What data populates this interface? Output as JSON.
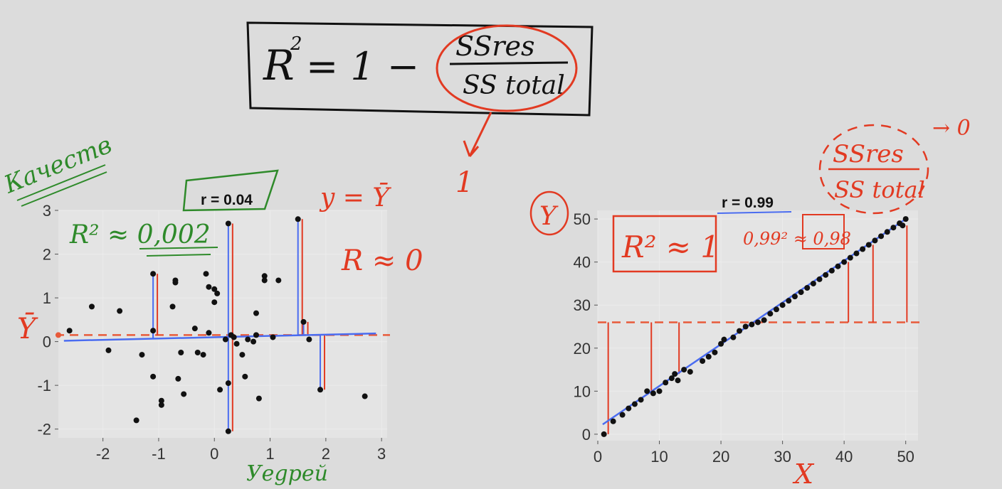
{
  "formula": {
    "lhs": "R",
    "sup": "2",
    "eq": "= 1 −",
    "numerator": "SSres",
    "denominator": "SS total",
    "arrow_result": "1"
  },
  "left_annotations": {
    "side_word": "Качеств",
    "r2": "R² ≈ 0,002",
    "y_eq": "y = Ȳ",
    "r_approx": "R ≈ 0",
    "ybar": "Ȳ",
    "bottom_word": "Уegрей"
  },
  "right_annotations": {
    "y_circle": "Y",
    "r2_box": "R² ≈ 1",
    "calc": "0,99² ≈ 0,98",
    "ratio_num": "SSres",
    "ratio_den": "SS total",
    "to_zero": "→ 0",
    "x_label": "X"
  },
  "colors": {
    "background": "#dcdcdc",
    "fit_line": "#4a6cf0",
    "residual": "#e23a22",
    "mean_line": "#e85a3a",
    "points": "#111111",
    "green_ink": "#2e8a2a"
  },
  "chart_data": [
    {
      "type": "scatter",
      "title": "r = 0.04",
      "xlabel": "",
      "ylabel": "",
      "xlim": [
        -2.8,
        3.1
      ],
      "ylim": [
        -2.2,
        3.0
      ],
      "xticks": [
        -2,
        -1,
        0,
        1,
        2,
        3
      ],
      "yticks": [
        -2,
        -1,
        0,
        1,
        2,
        3
      ],
      "mean_y": 0.15,
      "fit": {
        "intercept": 0.1,
        "slope": 0.03
      },
      "points": [
        [
          -2.6,
          0.25
        ],
        [
          -2.2,
          0.8
        ],
        [
          -1.9,
          -0.2
        ],
        [
          -1.7,
          0.7
        ],
        [
          -1.4,
          -1.8
        ],
        [
          -1.3,
          -0.3
        ],
        [
          -1.1,
          -0.8
        ],
        [
          -1.1,
          1.55
        ],
        [
          -1.1,
          0.25
        ],
        [
          -0.95,
          -1.35
        ],
        [
          -0.95,
          -1.45
        ],
        [
          -0.75,
          0.8
        ],
        [
          -0.7,
          1.35
        ],
        [
          -0.7,
          1.4
        ],
        [
          -0.65,
          -0.85
        ],
        [
          -0.6,
          -0.25
        ],
        [
          -0.55,
          -1.2
        ],
        [
          -0.35,
          0.3
        ],
        [
          -0.3,
          -0.25
        ],
        [
          -0.2,
          -0.3
        ],
        [
          -0.15,
          1.55
        ],
        [
          -0.1,
          0.2
        ],
        [
          -0.1,
          1.25
        ],
        [
          0.0,
          1.2
        ],
        [
          0.0,
          0.9
        ],
        [
          0.05,
          1.1
        ],
        [
          0.1,
          -1.1
        ],
        [
          0.2,
          0.05
        ],
        [
          0.25,
          -0.95
        ],
        [
          0.25,
          2.7
        ],
        [
          0.3,
          0.15
        ],
        [
          0.35,
          0.1
        ],
        [
          0.4,
          -0.05
        ],
        [
          0.5,
          -0.3
        ],
        [
          0.55,
          -0.8
        ],
        [
          0.6,
          0.05
        ],
        [
          0.7,
          0.0
        ],
        [
          0.75,
          0.15
        ],
        [
          0.75,
          0.65
        ],
        [
          0.8,
          -1.3
        ],
        [
          0.9,
          1.5
        ],
        [
          0.9,
          1.4
        ],
        [
          1.05,
          0.1
        ],
        [
          1.15,
          1.4
        ],
        [
          1.5,
          2.8
        ],
        [
          1.6,
          0.45
        ],
        [
          1.7,
          0.05
        ],
        [
          1.9,
          -1.1
        ],
        [
          2.7,
          -1.25
        ],
        [
          0.25,
          -2.05
        ]
      ]
    },
    {
      "type": "scatter",
      "title": "r = 0.99",
      "xlabel": "X",
      "ylabel": "Y",
      "xlim": [
        0,
        52
      ],
      "ylim": [
        -1.5,
        52
      ],
      "xticks": [
        0,
        10,
        20,
        30,
        40,
        50
      ],
      "yticks": [
        0,
        10,
        20,
        30,
        40,
        50
      ],
      "mean_y": 26,
      "fit": {
        "intercept": 1.5,
        "slope": 0.97
      },
      "points": [
        [
          1,
          0
        ],
        [
          2.5,
          3
        ],
        [
          4,
          4.5
        ],
        [
          5,
          6
        ],
        [
          6,
          7
        ],
        [
          7,
          8
        ],
        [
          8,
          10
        ],
        [
          9,
          9.5
        ],
        [
          10,
          10
        ],
        [
          11,
          12
        ],
        [
          12,
          13
        ],
        [
          12.5,
          14
        ],
        [
          13,
          12.5
        ],
        [
          14,
          15
        ],
        [
          15,
          14.5
        ],
        [
          17,
          17
        ],
        [
          18,
          18
        ],
        [
          19,
          19
        ],
        [
          20,
          21
        ],
        [
          20.5,
          22
        ],
        [
          22,
          22.5
        ],
        [
          23,
          24
        ],
        [
          24,
          25
        ],
        [
          25,
          25.5
        ],
        [
          26,
          26
        ],
        [
          27,
          26.5
        ],
        [
          28,
          28
        ],
        [
          29,
          29
        ],
        [
          30,
          30
        ],
        [
          31,
          31
        ],
        [
          32,
          32
        ],
        [
          33,
          33
        ],
        [
          34,
          34
        ],
        [
          35,
          35
        ],
        [
          36,
          36
        ],
        [
          37,
          37
        ],
        [
          38,
          38
        ],
        [
          39,
          39
        ],
        [
          40,
          40
        ],
        [
          41,
          41
        ],
        [
          42,
          42
        ],
        [
          43,
          43
        ],
        [
          44,
          44
        ],
        [
          45,
          45
        ],
        [
          46,
          46
        ],
        [
          47,
          47
        ],
        [
          48,
          48
        ],
        [
          49,
          49
        ],
        [
          49.5,
          48.5
        ],
        [
          50,
          50
        ]
      ]
    }
  ]
}
